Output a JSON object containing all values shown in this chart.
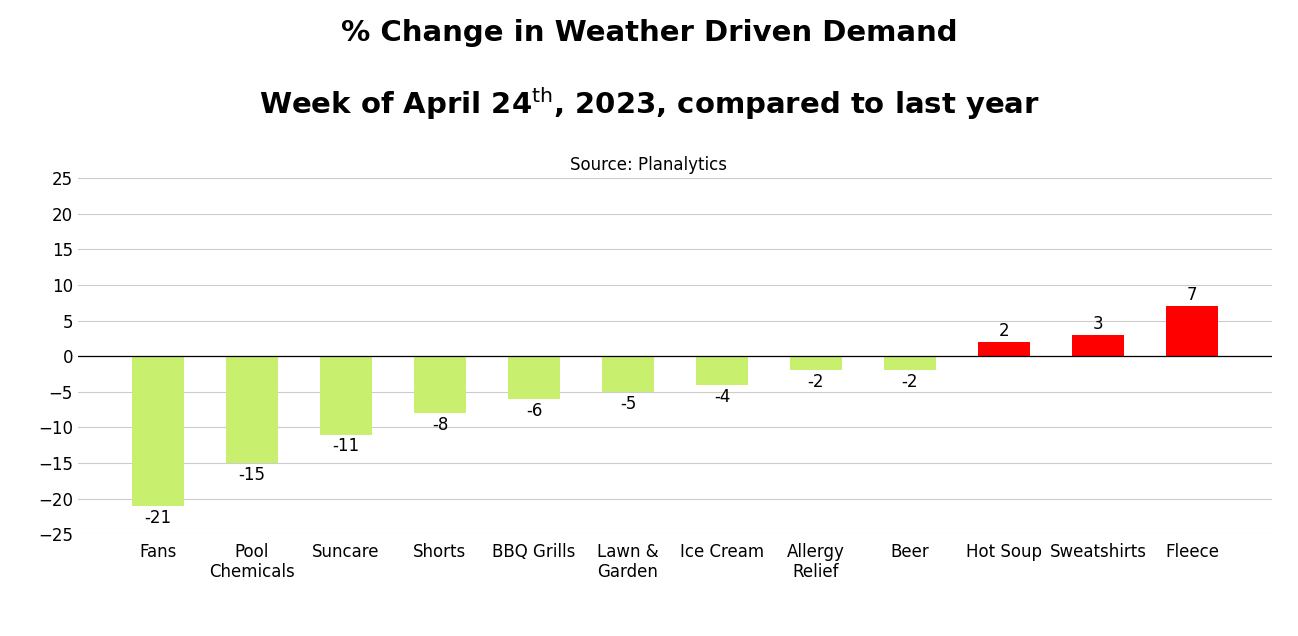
{
  "categories": [
    "Fans",
    "Pool\nChemicals",
    "Suncare",
    "Shorts",
    "BBQ Grills",
    "Lawn &\nGarden",
    "Ice Cream",
    "Allergy\nRelief",
    "Beer",
    "Hot Soup",
    "Sweatshirts",
    "Fleece"
  ],
  "values": [
    -21,
    -15,
    -11,
    -8,
    -6,
    -5,
    -4,
    -2,
    -2,
    2,
    3,
    7
  ],
  "bar_color_negative": "#c8f06e",
  "bar_color_positive": "#ff0000",
  "title_line1": "% Change in Weather Driven Demand",
  "title_line2_base": "Week of April 24",
  "title_line2_sup": "th",
  "title_line2_end": ", 2023, compared to last year",
  "subtitle": "Source: Planalytics",
  "ylim": [
    -25,
    25
  ],
  "yticks": [
    -25,
    -20,
    -15,
    -10,
    -5,
    0,
    5,
    10,
    15,
    20,
    25
  ],
  "background_color": "#ffffff",
  "grid_color": "#cccccc",
  "title_fontsize": 21,
  "subtitle_fontsize": 12,
  "tick_fontsize": 12,
  "bar_label_fontsize": 12,
  "bar_width": 0.55
}
